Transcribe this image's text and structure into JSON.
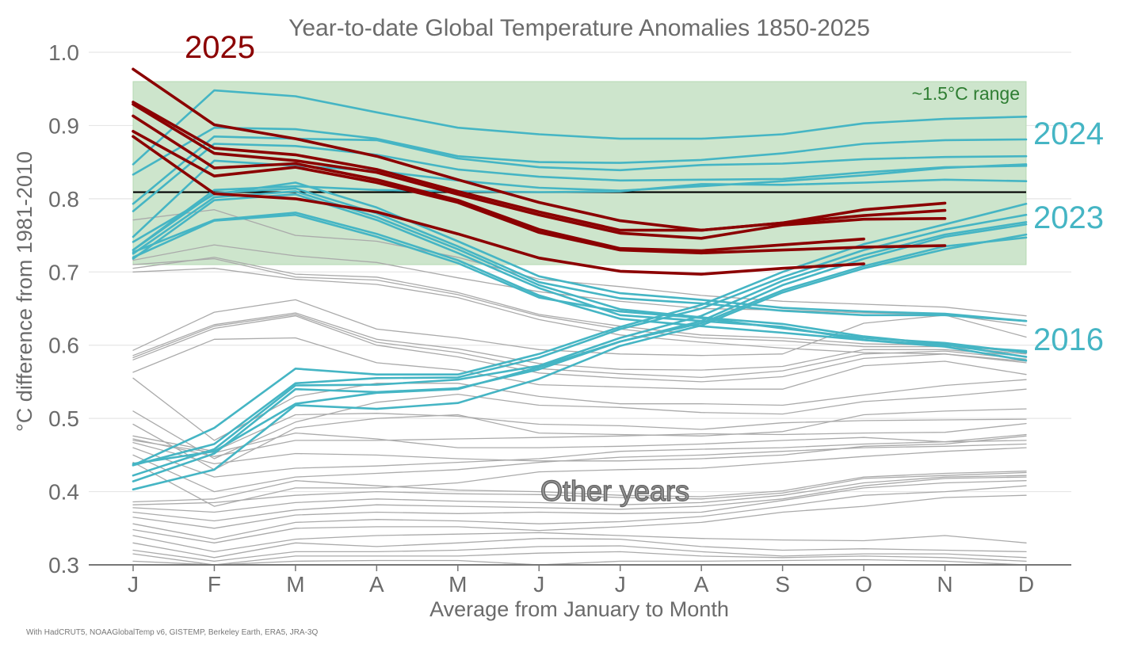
{
  "chart_data": {
    "type": "line",
    "title": "Year-to-date Global Temperature Anomalies 1850-2025",
    "xlabel": "Average from January to Month",
    "ylabel": "°C difference from 1981-2010",
    "source": "With HadCRUT5, NOAAGlobalTemp v6, GISTEMP, Berkeley Earth, ERA5, JRA-3Q",
    "categories": [
      "J",
      "F",
      "M",
      "A",
      "M",
      "J",
      "J",
      "A",
      "S",
      "O",
      "N",
      "D"
    ],
    "ylim": [
      0.3,
      1.0
    ],
    "yticks": [
      "0.3",
      "0.4",
      "0.5",
      "0.6",
      "0.7",
      "0.8",
      "0.9",
      "1.0"
    ],
    "grid": true,
    "reference_line": {
      "value": 0.809,
      "color": "#000000"
    },
    "range_band": {
      "label": "~1.5°C range",
      "ymin": 0.71,
      "ymax": 0.96,
      "color": "#cde5cc",
      "text_color": "#2e7d32"
    },
    "colors": {
      "y2025": "#8b0000",
      "highlight": "#45b5c4",
      "other": "#aaaaaa"
    },
    "labels": {
      "y2025": "2025",
      "y2024": "2024",
      "y2023": "2023",
      "y2016": "2016",
      "other": "Other years"
    },
    "series": [
      {
        "name": "2025",
        "group": "y2025",
        "values": [
          0.977,
          0.901,
          0.882,
          0.858,
          0.826,
          0.795,
          0.77,
          0.757,
          0.767,
          0.785,
          0.794
        ]
      },
      {
        "name": "2025",
        "group": "y2025",
        "values": [
          0.932,
          0.869,
          0.86,
          0.84,
          0.81,
          0.782,
          0.757,
          0.757,
          0.767,
          0.777,
          0.784
        ]
      },
      {
        "name": "2025",
        "group": "y2025",
        "values": [
          0.929,
          0.862,
          0.852,
          0.836,
          0.806,
          0.778,
          0.753,
          0.746,
          0.764,
          0.772,
          0.773
        ]
      },
      {
        "name": "2025",
        "group": "y2025",
        "values": [
          0.913,
          0.842,
          0.848,
          0.826,
          0.798,
          0.758,
          0.732,
          0.729,
          0.737,
          0.745
        ]
      },
      {
        "name": "2025",
        "group": "y2025",
        "values": [
          0.892,
          0.831,
          0.843,
          0.822,
          0.795,
          0.754,
          0.73,
          0.726,
          0.73,
          0.734,
          0.736
        ]
      },
      {
        "name": "2025",
        "group": "y2025",
        "values": [
          0.885,
          0.807,
          0.8,
          0.782,
          0.752,
          0.719,
          0.701,
          0.697,
          0.705,
          0.711
        ]
      },
      {
        "name": "2024",
        "group": "y2024",
        "values": [
          0.847,
          0.948,
          0.94,
          0.918,
          0.897,
          0.888,
          0.882,
          0.882,
          0.888,
          0.903,
          0.909,
          0.912
        ]
      },
      {
        "name": "2024",
        "group": "y2024",
        "values": [
          0.833,
          0.897,
          0.895,
          0.882,
          0.858,
          0.85,
          0.849,
          0.853,
          0.862,
          0.875,
          0.88,
          0.881
        ]
      },
      {
        "name": "2024",
        "group": "y2024",
        "values": [
          0.793,
          0.885,
          0.882,
          0.88,
          0.855,
          0.843,
          0.839,
          0.846,
          0.848,
          0.854,
          0.857,
          0.858
        ]
      },
      {
        "name": "2024",
        "group": "y2024",
        "values": [
          0.783,
          0.875,
          0.872,
          0.86,
          0.84,
          0.83,
          0.825,
          0.826,
          0.827,
          0.836,
          0.843,
          0.845
        ]
      },
      {
        "name": "2024",
        "group": "y2024",
        "values": [
          0.748,
          0.852,
          0.845,
          0.838,
          0.825,
          0.815,
          0.811,
          0.817,
          0.824,
          0.832,
          0.842,
          0.847
        ]
      },
      {
        "name": "2024",
        "group": "y2024",
        "values": [
          0.73,
          0.812,
          0.817,
          0.812,
          0.81,
          0.809,
          0.81,
          0.82,
          0.819,
          0.822,
          0.826,
          0.824
        ]
      },
      {
        "name": "2023",
        "group": "y2023",
        "values": [
          0.436,
          0.487,
          0.568,
          0.56,
          0.56,
          0.588,
          0.625,
          0.655,
          0.7,
          0.738,
          0.765,
          0.793
        ]
      },
      {
        "name": "2023",
        "group": "y2023",
        "values": [
          0.436,
          0.465,
          0.548,
          0.555,
          0.556,
          0.583,
          0.622,
          0.65,
          0.693,
          0.73,
          0.758,
          0.778
        ]
      },
      {
        "name": "2023",
        "group": "y2023",
        "values": [
          0.422,
          0.458,
          0.545,
          0.546,
          0.553,
          0.572,
          0.61,
          0.64,
          0.688,
          0.723,
          0.751,
          0.768
        ]
      },
      {
        "name": "2023",
        "group": "y2023",
        "values": [
          0.414,
          0.452,
          0.54,
          0.536,
          0.541,
          0.567,
          0.605,
          0.633,
          0.682,
          0.718,
          0.748,
          0.765
        ]
      },
      {
        "name": "2023",
        "group": "y2023",
        "values": [
          0.403,
          0.43,
          0.518,
          0.513,
          0.521,
          0.554,
          0.599,
          0.627,
          0.672,
          0.705,
          0.731,
          0.751
        ]
      },
      {
        "name": "2023",
        "group": "y2023",
        "values": [
          0.438,
          0.455,
          0.52,
          0.535,
          0.54,
          0.57,
          0.605,
          0.63,
          0.675,
          0.708,
          0.735,
          0.747
        ]
      },
      {
        "name": "2016",
        "group": "y2016",
        "values": [
          0.727,
          0.771,
          0.781,
          0.752,
          0.716,
          0.668,
          0.636,
          0.626,
          0.617,
          0.607,
          0.6,
          0.592
        ]
      },
      {
        "name": "2016",
        "group": "y2016",
        "values": [
          0.72,
          0.77,
          0.778,
          0.748,
          0.712,
          0.665,
          0.646,
          0.637,
          0.623,
          0.61,
          0.603,
          0.59
        ]
      },
      {
        "name": "2016",
        "group": "y2016",
        "values": [
          0.741,
          0.806,
          0.822,
          0.788,
          0.742,
          0.694,
          0.671,
          0.662,
          0.651,
          0.646,
          0.643,
          0.633
        ]
      },
      {
        "name": "2016",
        "group": "y2016",
        "values": [
          0.73,
          0.808,
          0.814,
          0.78,
          0.735,
          0.686,
          0.664,
          0.657,
          0.647,
          0.641,
          0.641,
          0.633
        ]
      },
      {
        "name": "2016",
        "group": "y2016",
        "values": [
          0.725,
          0.802,
          0.81,
          0.775,
          0.731,
          0.682,
          0.649,
          0.638,
          0.629,
          0.612,
          0.601,
          0.584
        ]
      },
      {
        "name": "2016",
        "group": "y2016",
        "values": [
          0.718,
          0.798,
          0.806,
          0.771,
          0.726,
          0.678,
          0.641,
          0.633,
          0.625,
          0.607,
          0.598,
          0.579
        ]
      },
      {
        "name": "other",
        "group": "other",
        "values": [
          0.771,
          0.785,
          0.75,
          0.742,
          0.72,
          0.69,
          0.68,
          0.668,
          0.66,
          0.656,
          0.652,
          0.64
        ]
      },
      {
        "name": "other",
        "group": "other",
        "values": [
          0.716,
          0.737,
          0.722,
          0.713,
          0.692,
          0.673,
          0.66,
          0.65,
          0.648,
          0.644,
          0.642,
          0.627
        ]
      },
      {
        "name": "other",
        "group": "other",
        "values": [
          0.71,
          0.718,
          0.693,
          0.689,
          0.669,
          0.64,
          0.622,
          0.61,
          0.606,
          0.598,
          0.598,
          0.588
        ]
      },
      {
        "name": "other",
        "group": "other",
        "values": [
          0.705,
          0.72,
          0.697,
          0.693,
          0.672,
          0.642,
          0.626,
          0.614,
          0.61,
          0.602,
          0.6,
          0.59
        ]
      },
      {
        "name": "other",
        "group": "other",
        "values": [
          0.7,
          0.705,
          0.69,
          0.683,
          0.665,
          0.635,
          0.614,
          0.604,
          0.596,
          0.59,
          0.588,
          0.578
        ]
      },
      {
        "name": "other",
        "group": "other",
        "values": [
          0.593,
          0.645,
          0.662,
          0.622,
          0.61,
          0.594,
          0.588,
          0.586,
          0.588,
          0.63,
          0.641,
          0.611
        ]
      },
      {
        "name": "other",
        "group": "other",
        "values": [
          0.586,
          0.628,
          0.644,
          0.608,
          0.595,
          0.575,
          0.567,
          0.566,
          0.571,
          0.594,
          0.594,
          0.585
        ]
      },
      {
        "name": "other",
        "group": "other",
        "values": [
          0.583,
          0.626,
          0.642,
          0.604,
          0.59,
          0.568,
          0.561,
          0.556,
          0.565,
          0.588,
          0.592,
          0.581
        ]
      },
      {
        "name": "other",
        "group": "other",
        "values": [
          0.58,
          0.623,
          0.64,
          0.6,
          0.584,
          0.562,
          0.555,
          0.55,
          0.557,
          0.582,
          0.588,
          0.576
        ]
      },
      {
        "name": "other",
        "group": "other",
        "values": [
          0.563,
          0.608,
          0.61,
          0.576,
          0.566,
          0.546,
          0.543,
          0.54,
          0.54,
          0.572,
          0.578,
          0.56
        ]
      },
      {
        "name": "other",
        "group": "other",
        "values": [
          0.555,
          0.47,
          0.53,
          0.548,
          0.548,
          0.53,
          0.52,
          0.52,
          0.518,
          0.532,
          0.545,
          0.553
        ]
      },
      {
        "name": "other",
        "group": "other",
        "values": [
          0.51,
          0.445,
          0.495,
          0.522,
          0.533,
          0.518,
          0.515,
          0.508,
          0.506,
          0.523,
          0.53,
          0.54
        ]
      },
      {
        "name": "other",
        "group": "other",
        "values": [
          0.492,
          0.43,
          0.487,
          0.5,
          0.505,
          0.48,
          0.478,
          0.476,
          0.482,
          0.505,
          0.51,
          0.513
        ]
      },
      {
        "name": "other",
        "group": "other",
        "values": [
          0.476,
          0.455,
          0.505,
          0.507,
          0.503,
          0.492,
          0.49,
          0.485,
          0.494,
          0.497,
          0.498,
          0.499
        ]
      },
      {
        "name": "other",
        "group": "other",
        "values": [
          0.472,
          0.448,
          0.47,
          0.47,
          0.472,
          0.474,
          0.476,
          0.479,
          0.478,
          0.48,
          0.481,
          0.493
        ]
      },
      {
        "name": "other",
        "group": "other",
        "values": [
          0.47,
          0.453,
          0.48,
          0.472,
          0.46,
          0.46,
          0.462,
          0.465,
          0.47,
          0.474,
          0.468,
          0.478
        ]
      },
      {
        "name": "other",
        "group": "other",
        "values": [
          0.467,
          0.438,
          0.452,
          0.45,
          0.445,
          0.442,
          0.442,
          0.445,
          0.45,
          0.462,
          0.465,
          0.476
        ]
      },
      {
        "name": "other",
        "group": "other",
        "values": [
          0.46,
          0.42,
          0.432,
          0.435,
          0.44,
          0.445,
          0.455,
          0.458,
          0.46,
          0.465,
          0.468,
          0.47
        ]
      },
      {
        "name": "other",
        "group": "other",
        "values": [
          0.45,
          0.4,
          0.42,
          0.425,
          0.43,
          0.44,
          0.447,
          0.45,
          0.455,
          0.46,
          0.462,
          0.465
        ]
      },
      {
        "name": "other",
        "group": "other",
        "values": [
          0.44,
          0.38,
          0.405,
          0.405,
          0.412,
          0.427,
          0.43,
          0.432,
          0.44,
          0.448,
          0.455,
          0.46
        ]
      },
      {
        "name": "other",
        "group": "other",
        "values": [
          0.386,
          0.39,
          0.415,
          0.408,
          0.402,
          0.4,
          0.395,
          0.393,
          0.401,
          0.42,
          0.425,
          0.428
        ]
      },
      {
        "name": "other",
        "group": "other",
        "values": [
          0.382,
          0.385,
          0.395,
          0.4,
          0.397,
          0.396,
          0.392,
          0.39,
          0.398,
          0.418,
          0.422,
          0.426
        ]
      },
      {
        "name": "other",
        "group": "other",
        "values": [
          0.378,
          0.372,
          0.385,
          0.39,
          0.387,
          0.385,
          0.382,
          0.385,
          0.395,
          0.412,
          0.42,
          0.422
        ]
      },
      {
        "name": "other",
        "group": "other",
        "values": [
          0.372,
          0.36,
          0.375,
          0.382,
          0.38,
          0.378,
          0.376,
          0.38,
          0.39,
          0.408,
          0.418,
          0.42
        ]
      },
      {
        "name": "other",
        "group": "other",
        "values": [
          0.365,
          0.35,
          0.368,
          0.372,
          0.37,
          0.372,
          0.37,
          0.372,
          0.388,
          0.405,
          0.412,
          0.415
        ]
      },
      {
        "name": "other",
        "group": "other",
        "values": [
          0.356,
          0.335,
          0.358,
          0.362,
          0.36,
          0.356,
          0.359,
          0.366,
          0.38,
          0.395,
          0.4,
          0.408
        ]
      },
      {
        "name": "other",
        "group": "other",
        "values": [
          0.348,
          0.33,
          0.35,
          0.352,
          0.352,
          0.347,
          0.352,
          0.358,
          0.372,
          0.38,
          0.392,
          0.395
        ]
      },
      {
        "name": "other",
        "group": "other",
        "values": [
          0.34,
          0.318,
          0.335,
          0.34,
          0.342,
          0.344,
          0.34,
          0.336,
          0.334,
          0.333,
          0.34,
          0.33
        ]
      },
      {
        "name": "other",
        "group": "other",
        "values": [
          0.33,
          0.31,
          0.33,
          0.325,
          0.33,
          0.336,
          0.335,
          0.325,
          0.32,
          0.322,
          0.32,
          0.318
        ]
      },
      {
        "name": "other",
        "group": "other",
        "values": [
          0.32,
          0.305,
          0.318,
          0.318,
          0.32,
          0.325,
          0.326,
          0.318,
          0.312,
          0.315,
          0.315,
          0.31
        ]
      },
      {
        "name": "other",
        "group": "other",
        "values": [
          0.315,
          0.3,
          0.312,
          0.312,
          0.312,
          0.316,
          0.318,
          0.312,
          0.31,
          0.312,
          0.31,
          0.305
        ]
      },
      {
        "name": "other",
        "group": "other",
        "values": [
          0.305,
          0.3,
          0.305,
          0.306,
          0.306,
          0.3,
          0.305,
          0.305,
          0.306,
          0.307,
          0.305,
          0.3
        ]
      }
    ]
  }
}
